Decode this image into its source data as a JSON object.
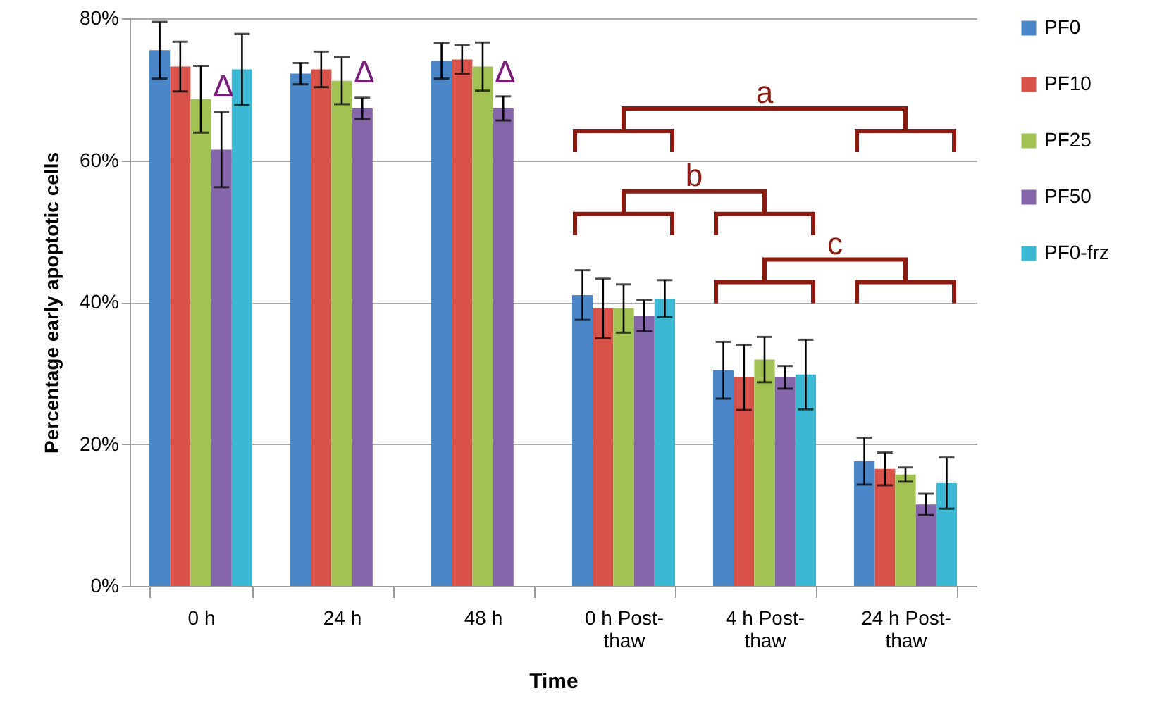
{
  "chart_data": {
    "type": "bar",
    "xlabel": "Time",
    "ylabel": "Percentage early apoptotic cells",
    "categories": [
      "0 h",
      "24 h",
      "48 h",
      "0 h Post-thaw",
      "4 h Post-thaw",
      "24 h Post-thaw"
    ],
    "series": [
      {
        "name": "PF0",
        "color": "#4a86c8",
        "values": [
          75.5,
          72.2,
          74,
          41,
          30.4,
          17.6
        ],
        "errors": [
          4,
          1.5,
          2.5,
          3.5,
          4,
          3.3
        ]
      },
      {
        "name": "PF10",
        "color": "#d9534a",
        "values": [
          73.2,
          72.8,
          74.2,
          39.1,
          29.4,
          16.5
        ],
        "errors": [
          3.5,
          2.5,
          2,
          4.2,
          4.6,
          2.3
        ]
      },
      {
        "name": "PF25",
        "color": "#a2c254",
        "values": [
          68.6,
          71.2,
          73.2,
          39.1,
          31.9,
          15.7
        ],
        "errors": [
          4.7,
          3.3,
          3.4,
          3.4,
          3.2,
          1
        ]
      },
      {
        "name": "PF50",
        "color": "#8566aa",
        "values": [
          61.5,
          67.3,
          67.3,
          38.1,
          29.4,
          11.5
        ],
        "errors": [
          5.3,
          1.5,
          1.7,
          2.2,
          1.6,
          1.5
        ]
      },
      {
        "name": "PF0-frz",
        "color": "#3bb8d3",
        "values": [
          72.8,
          null,
          null,
          40.5,
          29.8,
          14.5
        ],
        "errors": [
          5,
          null,
          null,
          2.6,
          4.9,
          3.6
        ]
      }
    ],
    "ylim": [
      0,
      80
    ],
    "yticks": [
      {
        "value": 0,
        "label": "0%"
      },
      {
        "value": 20,
        "label": "20%"
      },
      {
        "value": 40,
        "label": "40%"
      },
      {
        "value": 60,
        "label": "60%"
      },
      {
        "value": 80,
        "label": "80%"
      }
    ],
    "grid": "y",
    "legend": "right",
    "annotations": [
      "a",
      "b",
      "c",
      {
        "text": "Δ",
        "x": "0 h",
        "y": 69
      },
      {
        "text": "Δ",
        "x": "24 h",
        "y": 71
      },
      {
        "text": "Δ",
        "x": "48 h",
        "y": 71
      }
    ]
  }
}
